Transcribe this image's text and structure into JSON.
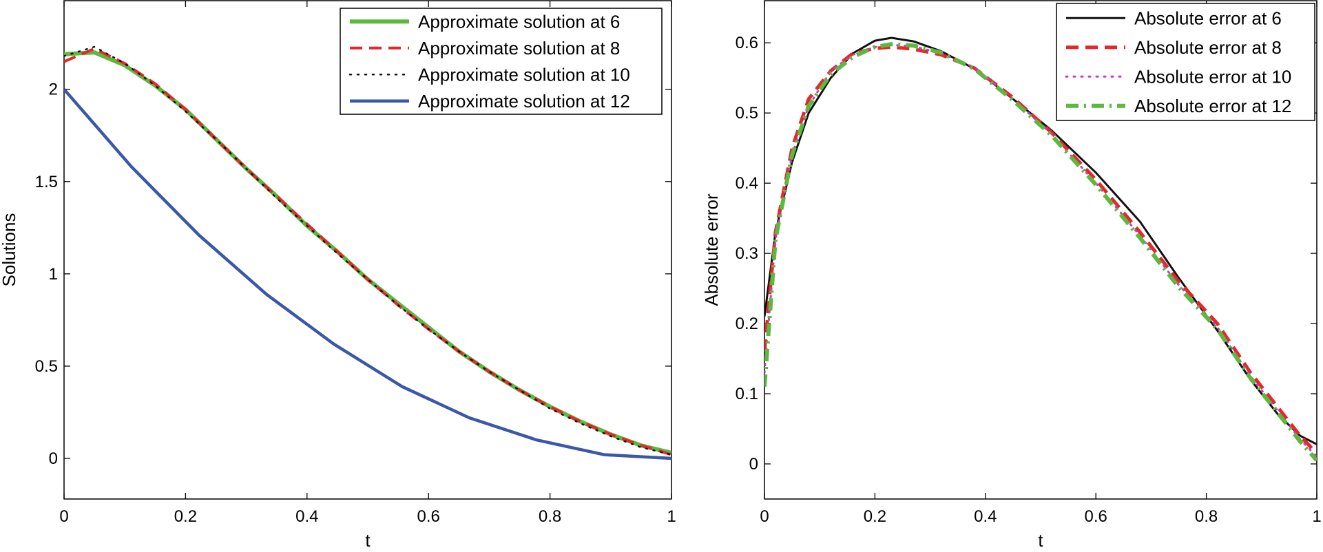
{
  "chart_data": [
    {
      "type": "line",
      "title": "",
      "xlabel": "t",
      "ylabel": "Solutions",
      "xlim": [
        0,
        1
      ],
      "ylim": [
        -0.22,
        2.48
      ],
      "xticks": [
        0,
        0.2,
        0.4,
        0.6,
        0.8,
        1
      ],
      "xtick_labels": [
        "0",
        "0.2",
        "0.4",
        "0.6",
        "0.8",
        "1"
      ],
      "yticks": [
        0,
        0.5,
        1,
        1.5,
        2
      ],
      "ytick_labels": [
        "0",
        "0.5",
        "1",
        "1.5",
        "2"
      ],
      "grid": false,
      "legend_position": "top-right",
      "x": [
        0,
        0.05,
        0.1,
        0.15,
        0.2,
        0.25,
        0.3,
        0.35,
        0.4,
        0.45,
        0.5,
        0.55,
        0.6,
        0.65,
        0.7,
        0.75,
        0.8,
        0.85,
        0.9,
        0.95,
        1.0
      ],
      "series": [
        {
          "name": "Approximate solution at 6",
          "color": "#5cb83e",
          "style": "solid",
          "width": 6,
          "values": [
            2.19,
            2.2,
            2.13,
            2.02,
            1.89,
            1.73,
            1.57,
            1.42,
            1.26,
            1.12,
            0.97,
            0.84,
            0.71,
            0.58,
            0.47,
            0.37,
            0.28,
            0.2,
            0.13,
            0.07,
            0.03
          ]
        },
        {
          "name": "Approximate solution at 8",
          "color": "#e8262a",
          "style": "dashed",
          "width": 4,
          "values": [
            2.15,
            2.22,
            2.14,
            2.03,
            1.89,
            1.73,
            1.57,
            1.42,
            1.27,
            1.12,
            0.97,
            0.83,
            0.7,
            0.58,
            0.47,
            0.37,
            0.28,
            0.2,
            0.13,
            0.07,
            0.02
          ]
        },
        {
          "name": "Approximate solution at 10",
          "color": "#111111",
          "style": "dotted",
          "width": 2.5,
          "values": [
            2.18,
            2.23,
            2.14,
            2.02,
            1.88,
            1.73,
            1.57,
            1.41,
            1.26,
            1.11,
            0.97,
            0.83,
            0.7,
            0.58,
            0.47,
            0.37,
            0.27,
            0.19,
            0.12,
            0.06,
            0.02
          ]
        },
        {
          "name": "Approximate solution at 12",
          "color": "#3a57a8",
          "style": "solid",
          "width": 4.5,
          "x": [
            0,
            0.111,
            0.222,
            0.333,
            0.444,
            0.556,
            0.667,
            0.778,
            0.889,
            1.0
          ],
          "values": [
            2.0,
            1.58,
            1.21,
            0.89,
            0.62,
            0.39,
            0.22,
            0.1,
            0.02,
            0.0
          ]
        }
      ]
    },
    {
      "type": "line",
      "title": "",
      "xlabel": "t",
      "ylabel": "Absolute error",
      "xlim": [
        0,
        1
      ],
      "ylim": [
        -0.05,
        0.66
      ],
      "xticks": [
        0,
        0.2,
        0.4,
        0.6,
        0.8,
        1
      ],
      "xtick_labels": [
        "0",
        "0.2",
        "0.4",
        "0.6",
        "0.8",
        "1"
      ],
      "yticks": [
        0,
        0.1,
        0.2,
        0.3,
        0.4,
        0.5,
        0.6
      ],
      "ytick_labels": [
        "0",
        "0.1",
        "0.2",
        "0.3",
        "0.4",
        "0.5",
        "0.6"
      ],
      "grid": false,
      "legend_position": "top-right",
      "series": [
        {
          "name": "Absolute error at 6",
          "color": "#111111",
          "style": "solid",
          "width": 3,
          "x": [
            0,
            0.02,
            0.05,
            0.08,
            0.12,
            0.16,
            0.2,
            0.23,
            0.27,
            0.32,
            0.38,
            0.45,
            0.52,
            0.6,
            0.68,
            0.75,
            0.82,
            0.88,
            0.93,
            0.97,
            1.0
          ],
          "values": [
            0.21,
            0.33,
            0.43,
            0.5,
            0.55,
            0.585,
            0.603,
            0.607,
            0.602,
            0.588,
            0.563,
            0.52,
            0.475,
            0.415,
            0.345,
            0.265,
            0.19,
            0.12,
            0.07,
            0.04,
            0.028
          ]
        },
        {
          "name": "Absolute error at 8",
          "color": "#e8262a",
          "style": "dashed",
          "width": 5,
          "x": [
            0,
            0.02,
            0.05,
            0.08,
            0.12,
            0.16,
            0.2,
            0.23,
            0.27,
            0.32,
            0.38,
            0.45,
            0.52,
            0.6,
            0.68,
            0.75,
            0.82,
            0.88,
            0.93,
            0.97,
            1.0
          ],
          "values": [
            0.16,
            0.33,
            0.45,
            0.52,
            0.56,
            0.585,
            0.592,
            0.594,
            0.591,
            0.583,
            0.564,
            0.522,
            0.472,
            0.405,
            0.33,
            0.26,
            0.2,
            0.13,
            0.08,
            0.04,
            0.015
          ]
        },
        {
          "name": "Absolute error at 10",
          "color": "#c040c0",
          "style": "dotted",
          "width": 3,
          "x": [
            0,
            0.02,
            0.05,
            0.08,
            0.12,
            0.16,
            0.2,
            0.23,
            0.27,
            0.32,
            0.38,
            0.45,
            0.52,
            0.6,
            0.68,
            0.75,
            0.82,
            0.88,
            0.93,
            0.97,
            1.0
          ],
          "values": [
            0.13,
            0.32,
            0.44,
            0.51,
            0.56,
            0.583,
            0.594,
            0.597,
            0.595,
            0.585,
            0.565,
            0.52,
            0.47,
            0.4,
            0.325,
            0.255,
            0.195,
            0.125,
            0.075,
            0.035,
            0.01
          ]
        },
        {
          "name": "Absolute error at 12",
          "color": "#5cb83e",
          "style": "dashdot",
          "width": 6,
          "x": [
            0,
            0.02,
            0.05,
            0.08,
            0.12,
            0.16,
            0.2,
            0.23,
            0.27,
            0.32,
            0.38,
            0.45,
            0.52,
            0.6,
            0.68,
            0.75,
            0.82,
            0.88,
            0.93,
            0.97,
            1.0
          ],
          "values": [
            0.11,
            0.32,
            0.44,
            0.51,
            0.555,
            0.58,
            0.594,
            0.598,
            0.596,
            0.586,
            0.563,
            0.518,
            0.468,
            0.398,
            0.322,
            0.252,
            0.192,
            0.122,
            0.072,
            0.032,
            0.005
          ]
        }
      ]
    }
  ]
}
